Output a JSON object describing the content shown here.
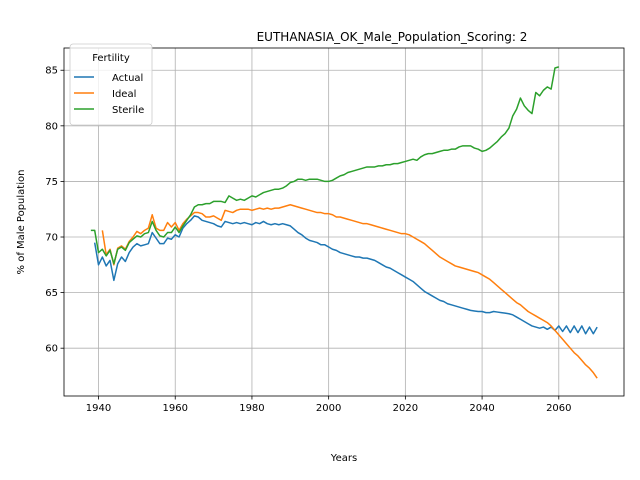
{
  "chart_data": {
    "type": "line",
    "title": "EUTHANASIA_OK_Male_Population_Scoring: 2",
    "xlabel": "Years",
    "ylabel": "% of Male Population",
    "xlim": [
      1931,
      2077
    ],
    "ylim": [
      55.7,
      87.0
    ],
    "xticks": [
      1940,
      1960,
      1980,
      2000,
      2020,
      2040,
      2060
    ],
    "yticks": [
      60,
      65,
      70,
      75,
      80,
      85
    ],
    "grid": true,
    "legend": {
      "title": "Fertility",
      "placement": "top-left"
    },
    "colors": {
      "Actual": "#1f77b4",
      "Ideal": "#ff7f0e",
      "Sterile": "#2ca02c"
    },
    "series": [
      {
        "name": "Actual",
        "color": "#1f77b4",
        "x": [
          1939,
          1940,
          1941,
          1942,
          1943,
          1944,
          1945,
          1946,
          1947,
          1948,
          1949,
          1950,
          1951,
          1952,
          1953,
          1954,
          1955,
          1956,
          1957,
          1958,
          1959,
          1960,
          1961,
          1962,
          1963,
          1964,
          1965,
          1966,
          1967,
          1968,
          1969,
          1970,
          1971,
          1972,
          1973,
          1974,
          1975,
          1976,
          1977,
          1978,
          1979,
          1980,
          1981,
          1982,
          1983,
          1984,
          1985,
          1986,
          1987,
          1988,
          1989,
          1990,
          1991,
          1992,
          1993,
          1994,
          1995,
          1996,
          1997,
          1998,
          1999,
          2000,
          2001,
          2002,
          2003,
          2004,
          2005,
          2006,
          2007,
          2008,
          2009,
          2010,
          2011,
          2012,
          2013,
          2014,
          2015,
          2016,
          2017,
          2018,
          2019,
          2020,
          2021,
          2022,
          2023,
          2024,
          2025,
          2026,
          2027,
          2028,
          2029,
          2030,
          2031,
          2032,
          2033,
          2034,
          2035,
          2036,
          2037,
          2038,
          2039,
          2040,
          2041,
          2042,
          2043,
          2044,
          2045,
          2046,
          2047,
          2048,
          2049,
          2050,
          2051,
          2052,
          2053,
          2054,
          2055,
          2056,
          2057,
          2058,
          2059,
          2060,
          2061,
          2062,
          2063,
          2064,
          2065,
          2066,
          2067,
          2068,
          2069,
          2070
        ],
        "values": [
          69.5,
          67.5,
          68.2,
          67.4,
          67.9,
          66.1,
          67.6,
          68.2,
          67.8,
          68.6,
          69.1,
          69.4,
          69.2,
          69.3,
          69.4,
          70.4,
          69.9,
          69.4,
          69.4,
          69.9,
          69.8,
          70.2,
          70.0,
          70.8,
          71.2,
          71.5,
          71.9,
          71.8,
          71.5,
          71.4,
          71.3,
          71.2,
          71.0,
          70.9,
          71.4,
          71.3,
          71.2,
          71.3,
          71.2,
          71.3,
          71.2,
          71.1,
          71.3,
          71.2,
          71.4,
          71.2,
          71.1,
          71.2,
          71.1,
          71.2,
          71.1,
          71.0,
          70.7,
          70.4,
          70.2,
          69.9,
          69.7,
          69.6,
          69.5,
          69.3,
          69.3,
          69.1,
          68.9,
          68.8,
          68.6,
          68.5,
          68.4,
          68.3,
          68.2,
          68.2,
          68.1,
          68.1,
          68.0,
          67.9,
          67.7,
          67.5,
          67.3,
          67.2,
          67.0,
          66.8,
          66.6,
          66.4,
          66.2,
          66.0,
          65.7,
          65.4,
          65.1,
          64.9,
          64.7,
          64.5,
          64.3,
          64.2,
          64.0,
          63.9,
          63.8,
          63.7,
          63.6,
          63.5,
          63.4,
          63.35,
          63.3,
          63.3,
          63.2,
          63.2,
          63.3,
          63.25,
          63.2,
          63.15,
          63.1,
          63.0,
          62.8,
          62.6,
          62.4,
          62.2,
          62.0,
          61.9,
          61.8,
          61.9,
          61.7,
          61.9,
          61.6,
          62.0,
          61.5,
          62.0,
          61.4,
          62.0,
          61.4,
          62.0,
          61.3,
          61.9,
          61.3,
          61.9
        ]
      },
      {
        "name": "Ideal",
        "color": "#ff7f0e",
        "x": [
          1941,
          1942,
          1943,
          1944,
          1945,
          1946,
          1947,
          1948,
          1949,
          1950,
          1951,
          1952,
          1953,
          1954,
          1955,
          1956,
          1957,
          1958,
          1959,
          1960,
          1961,
          1962,
          1963,
          1964,
          1965,
          1966,
          1967,
          1968,
          1969,
          1970,
          1971,
          1972,
          1973,
          1974,
          1975,
          1976,
          1977,
          1978,
          1979,
          1980,
          1981,
          1982,
          1983,
          1984,
          1985,
          1986,
          1987,
          1988,
          1989,
          1990,
          1991,
          1992,
          1993,
          1994,
          1995,
          1996,
          1997,
          1998,
          1999,
          2000,
          2001,
          2002,
          2003,
          2004,
          2005,
          2006,
          2007,
          2008,
          2009,
          2010,
          2011,
          2012,
          2013,
          2014,
          2015,
          2016,
          2017,
          2018,
          2019,
          2020,
          2021,
          2022,
          2023,
          2024,
          2025,
          2026,
          2027,
          2028,
          2029,
          2030,
          2031,
          2032,
          2033,
          2034,
          2035,
          2036,
          2037,
          2038,
          2039,
          2040,
          2041,
          2042,
          2043,
          2044,
          2045,
          2046,
          2047,
          2048,
          2049,
          2050,
          2051,
          2052,
          2053,
          2054,
          2055,
          2056,
          2057,
          2058,
          2059,
          2060,
          2061,
          2062,
          2063,
          2064,
          2065,
          2066,
          2067,
          2068,
          2069,
          2070
        ],
        "values": [
          70.6,
          68.4,
          68.9,
          67.5,
          69.0,
          69.2,
          68.9,
          69.6,
          70.0,
          70.5,
          70.3,
          70.6,
          70.8,
          72.0,
          70.8,
          70.6,
          70.6,
          71.3,
          70.9,
          71.3,
          70.6,
          71.2,
          71.6,
          71.9,
          72.2,
          72.2,
          72.1,
          71.8,
          71.8,
          71.9,
          71.7,
          71.5,
          72.4,
          72.3,
          72.2,
          72.4,
          72.5,
          72.5,
          72.5,
          72.4,
          72.5,
          72.6,
          72.5,
          72.6,
          72.5,
          72.6,
          72.6,
          72.7,
          72.8,
          72.9,
          72.8,
          72.7,
          72.6,
          72.5,
          72.4,
          72.3,
          72.2,
          72.2,
          72.1,
          72.1,
          72.0,
          71.8,
          71.8,
          71.7,
          71.6,
          71.5,
          71.4,
          71.3,
          71.2,
          71.2,
          71.1,
          71.0,
          70.9,
          70.8,
          70.7,
          70.6,
          70.5,
          70.4,
          70.3,
          70.3,
          70.2,
          70.0,
          69.8,
          69.6,
          69.4,
          69.1,
          68.8,
          68.5,
          68.2,
          68.0,
          67.8,
          67.6,
          67.4,
          67.3,
          67.2,
          67.1,
          67.0,
          66.9,
          66.8,
          66.6,
          66.4,
          66.2,
          65.9,
          65.6,
          65.3,
          65.0,
          64.7,
          64.4,
          64.1,
          63.9,
          63.6,
          63.3,
          63.1,
          62.9,
          62.7,
          62.5,
          62.3,
          62.0,
          61.6,
          61.2,
          60.8,
          60.4,
          60.0,
          59.6,
          59.3,
          58.9,
          58.5,
          58.2,
          57.8,
          57.3
        ]
      },
      {
        "name": "Sterile",
        "color": "#2ca02c",
        "x": [
          1938,
          1939,
          1940,
          1941,
          1942,
          1943,
          1944,
          1945,
          1946,
          1947,
          1948,
          1949,
          1950,
          1951,
          1952,
          1953,
          1954,
          1955,
          1956,
          1957,
          1958,
          1959,
          1960,
          1961,
          1962,
          1963,
          1964,
          1965,
          1966,
          1967,
          1968,
          1969,
          1970,
          1971,
          1972,
          1973,
          1974,
          1975,
          1976,
          1977,
          1978,
          1979,
          1980,
          1981,
          1982,
          1983,
          1984,
          1985,
          1986,
          1987,
          1988,
          1989,
          1990,
          1991,
          1992,
          1993,
          1994,
          1995,
          1996,
          1997,
          1998,
          1999,
          2000,
          2001,
          2002,
          2003,
          2004,
          2005,
          2006,
          2007,
          2008,
          2009,
          2010,
          2011,
          2012,
          2013,
          2014,
          2015,
          2016,
          2017,
          2018,
          2019,
          2020,
          2021,
          2022,
          2023,
          2024,
          2025,
          2026,
          2027,
          2028,
          2029,
          2030,
          2031,
          2032,
          2033,
          2034,
          2035,
          2036,
          2037,
          2038,
          2039,
          2040,
          2041,
          2042,
          2043,
          2044,
          2045,
          2046,
          2047,
          2048,
          2049,
          2050,
          2051,
          2052,
          2053,
          2054,
          2055,
          2056,
          2057,
          2058,
          2059,
          2060
        ],
        "values": [
          70.6,
          70.6,
          68.6,
          68.9,
          68.3,
          68.8,
          67.6,
          68.9,
          69.1,
          68.8,
          69.5,
          69.8,
          70.1,
          70.0,
          70.3,
          70.4,
          71.4,
          70.6,
          70.1,
          70.0,
          70.4,
          70.4,
          70.9,
          70.4,
          71.0,
          71.5,
          72.0,
          72.7,
          72.9,
          72.9,
          73.0,
          73.0,
          73.2,
          73.2,
          73.2,
          73.1,
          73.7,
          73.5,
          73.3,
          73.4,
          73.3,
          73.5,
          73.7,
          73.6,
          73.8,
          74.0,
          74.1,
          74.2,
          74.3,
          74.3,
          74.4,
          74.6,
          74.9,
          75.0,
          75.2,
          75.2,
          75.1,
          75.2,
          75.2,
          75.2,
          75.1,
          75.0,
          75.0,
          75.1,
          75.3,
          75.5,
          75.6,
          75.8,
          75.9,
          76.0,
          76.1,
          76.2,
          76.3,
          76.3,
          76.3,
          76.4,
          76.4,
          76.5,
          76.5,
          76.6,
          76.6,
          76.7,
          76.8,
          76.9,
          77.0,
          76.9,
          77.2,
          77.4,
          77.5,
          77.5,
          77.6,
          77.7,
          77.8,
          77.8,
          77.9,
          77.9,
          78.1,
          78.2,
          78.2,
          78.2,
          78.0,
          77.9,
          77.7,
          77.8,
          78.0,
          78.3,
          78.6,
          79.0,
          79.3,
          79.8,
          80.9,
          81.5,
          82.5,
          81.8,
          81.4,
          81.1,
          83.0,
          82.7,
          83.2,
          83.5,
          83.3,
          85.2,
          85.3
        ]
      }
    ]
  }
}
